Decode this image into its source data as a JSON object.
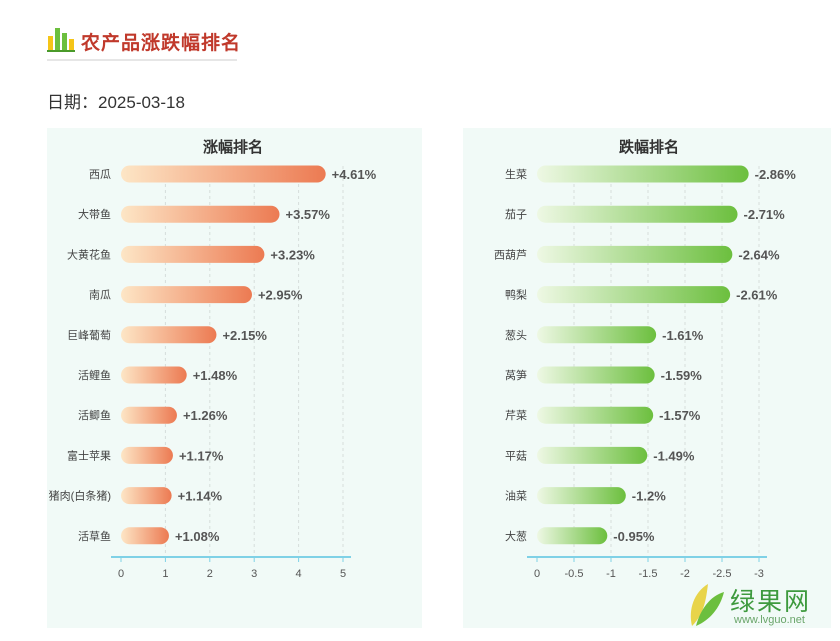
{
  "header": {
    "title": "农产品涨跌幅排名"
  },
  "date": {
    "label": "日期：",
    "value": "2025-03-18"
  },
  "colors": {
    "rise_start": "#fde6c6",
    "rise_end": "#ec7a52",
    "fall_start": "#eef8e4",
    "fall_end": "#6cbf3e",
    "title_red": "#c0392b",
    "axis": "#7fd1e6"
  },
  "watermark": {
    "name": "绿果网",
    "url": "www.lvguo.net"
  },
  "chart_data": [
    {
      "type": "bar",
      "orientation": "horizontal",
      "title": "涨幅排名",
      "categories": [
        "西瓜",
        "大带鱼",
        "大黄花鱼",
        "南瓜",
        "巨峰葡萄",
        "活鲤鱼",
        "活鲫鱼",
        "富士苹果",
        "猪肉(白条猪)",
        "活草鱼"
      ],
      "values": [
        4.61,
        3.57,
        3.23,
        2.95,
        2.15,
        1.48,
        1.26,
        1.17,
        1.14,
        1.08
      ],
      "labels": [
        "+4.61%",
        "+3.57%",
        "+3.23%",
        "+2.95%",
        "+2.15%",
        "+1.48%",
        "+1.26%",
        "+1.17%",
        "+1.14%",
        "+1.08%"
      ],
      "xlim": [
        0,
        5
      ],
      "xticks": [
        0,
        1,
        2,
        3,
        4,
        5
      ],
      "xtick_labels": [
        "0",
        "1",
        "2",
        "3",
        "4",
        "5"
      ],
      "grid": true
    },
    {
      "type": "bar",
      "orientation": "horizontal",
      "title": "跌幅排名",
      "categories": [
        "生菜",
        "茄子",
        "西葫芦",
        "鸭梨",
        "葱头",
        "莴笋",
        "芹菜",
        "平菇",
        "油菜",
        "大葱"
      ],
      "values": [
        -2.86,
        -2.71,
        -2.64,
        -2.61,
        -1.61,
        -1.59,
        -1.57,
        -1.49,
        -1.2,
        -0.95
      ],
      "labels": [
        "-2.86%",
        "-2.71%",
        "-2.64%",
        "-2.61%",
        "-1.61%",
        "-1.59%",
        "-1.57%",
        "-1.49%",
        "-1.2%",
        "-0.95%"
      ],
      "xlim": [
        0,
        -3
      ],
      "xticks": [
        0,
        -0.5,
        -1,
        -1.5,
        -2,
        -2.5,
        -3
      ],
      "xtick_labels": [
        "0",
        "-0.5",
        "-1",
        "-1.5",
        "-2",
        "-2.5",
        "-3"
      ],
      "grid": true
    }
  ]
}
